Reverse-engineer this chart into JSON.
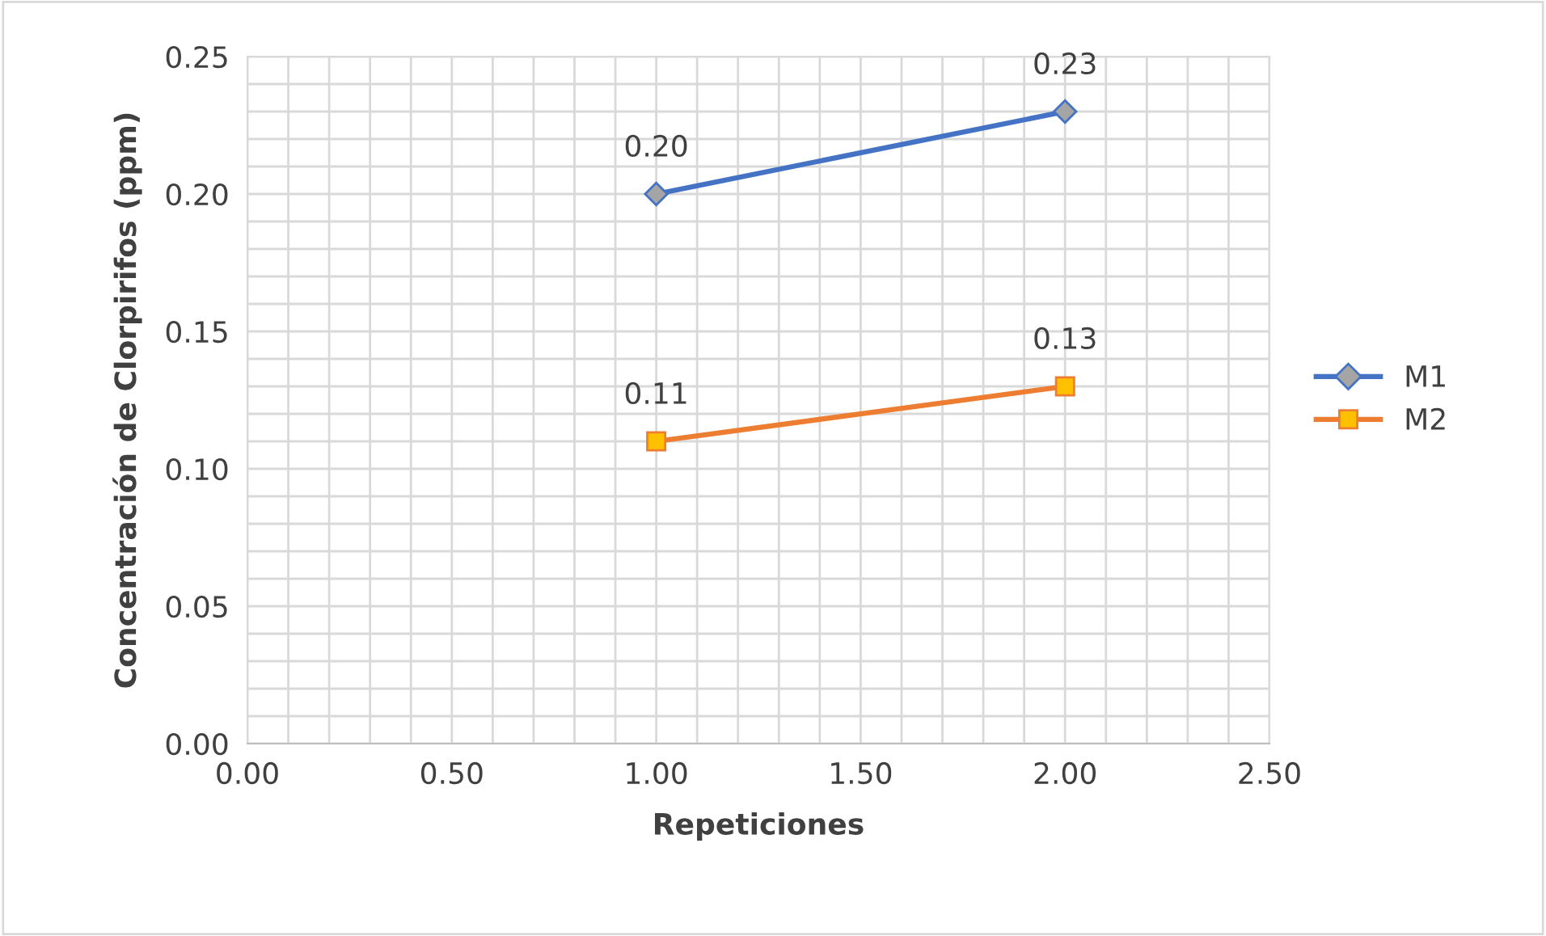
{
  "chart_data": {
    "type": "line",
    "xlabel": "Repeticiones",
    "ylabel": "Concentración de Clorpirifos (ppm)",
    "x": [
      1,
      2
    ],
    "series": [
      {
        "name": "M1",
        "color": "#4472c4",
        "colors": [
          "#a5a5a5",
          "#a5a5a5"
        ],
        "marker": "diamond",
        "values": [
          0.2,
          0.23
        ],
        "value_labels": [
          "0.20",
          "0.23"
        ]
      },
      {
        "name": "M2",
        "color": "#ed7d31",
        "colors": [
          "#ffc000",
          "#ffc000"
        ],
        "marker": "square",
        "values": [
          0.11,
          0.13
        ],
        "value_labels": [
          "0.11",
          "0.13"
        ]
      }
    ],
    "xlim": [
      0,
      2.5
    ],
    "ylim": [
      0,
      0.25
    ],
    "xticks": [
      {
        "value": 0,
        "label": "0.00"
      },
      {
        "value": 0.1,
        "label": null
      },
      {
        "value": 0.2,
        "label": null
      },
      {
        "value": 0.3,
        "label": null
      },
      {
        "value": 0.4,
        "label": null
      },
      {
        "value": 0.5,
        "label": "0.50"
      },
      {
        "value": 0.6,
        "label": null
      },
      {
        "value": 0.7,
        "label": null
      },
      {
        "value": 0.8,
        "label": null
      },
      {
        "value": 0.9,
        "label": null
      },
      {
        "value": 1.0,
        "label": "1.00"
      },
      {
        "value": 1.1,
        "label": null
      },
      {
        "value": 1.2,
        "label": null
      },
      {
        "value": 1.3,
        "label": null
      },
      {
        "value": 1.4,
        "label": null
      },
      {
        "value": 1.5,
        "label": "1.50"
      },
      {
        "value": 1.6,
        "label": null
      },
      {
        "value": 1.7,
        "label": null
      },
      {
        "value": 1.8,
        "label": null
      },
      {
        "value": 1.9,
        "label": null
      },
      {
        "value": 2.0,
        "label": "2.00"
      },
      {
        "value": 2.1,
        "label": null
      },
      {
        "value": 2.2,
        "label": null
      },
      {
        "value": 2.3,
        "label": null
      },
      {
        "value": 2.4,
        "label": null
      },
      {
        "value": 2.5,
        "label": "2.50"
      }
    ],
    "yticks": [
      {
        "value": 0,
        "label": "0.00"
      },
      {
        "value": 0.01,
        "label": null
      },
      {
        "value": 0.02,
        "label": null
      },
      {
        "value": 0.03,
        "label": null
      },
      {
        "value": 0.04,
        "label": null
      },
      {
        "value": 0.05,
        "label": "0.05"
      },
      {
        "value": 0.06,
        "label": null
      },
      {
        "value": 0.07,
        "label": null
      },
      {
        "value": 0.08,
        "label": null
      },
      {
        "value": 0.09,
        "label": null
      },
      {
        "value": 0.1,
        "label": "0.10"
      },
      {
        "value": 0.11,
        "label": null
      },
      {
        "value": 0.12,
        "label": null
      },
      {
        "value": 0.13,
        "label": null
      },
      {
        "value": 0.14,
        "label": null
      },
      {
        "value": 0.15,
        "label": "0.15"
      },
      {
        "value": 0.16,
        "label": null
      },
      {
        "value": 0.17,
        "label": null
      },
      {
        "value": 0.18,
        "label": null
      },
      {
        "value": 0.19,
        "label": null
      },
      {
        "value": 0.2,
        "label": "0.20"
      },
      {
        "value": 0.21,
        "label": null
      },
      {
        "value": 0.22,
        "label": null
      },
      {
        "value": 0.23,
        "label": null
      },
      {
        "value": 0.24,
        "label": null
      },
      {
        "value": 0.25,
        "label": "0.25"
      }
    ],
    "grid": true,
    "legend": "right",
    "line_style": "solid"
  }
}
